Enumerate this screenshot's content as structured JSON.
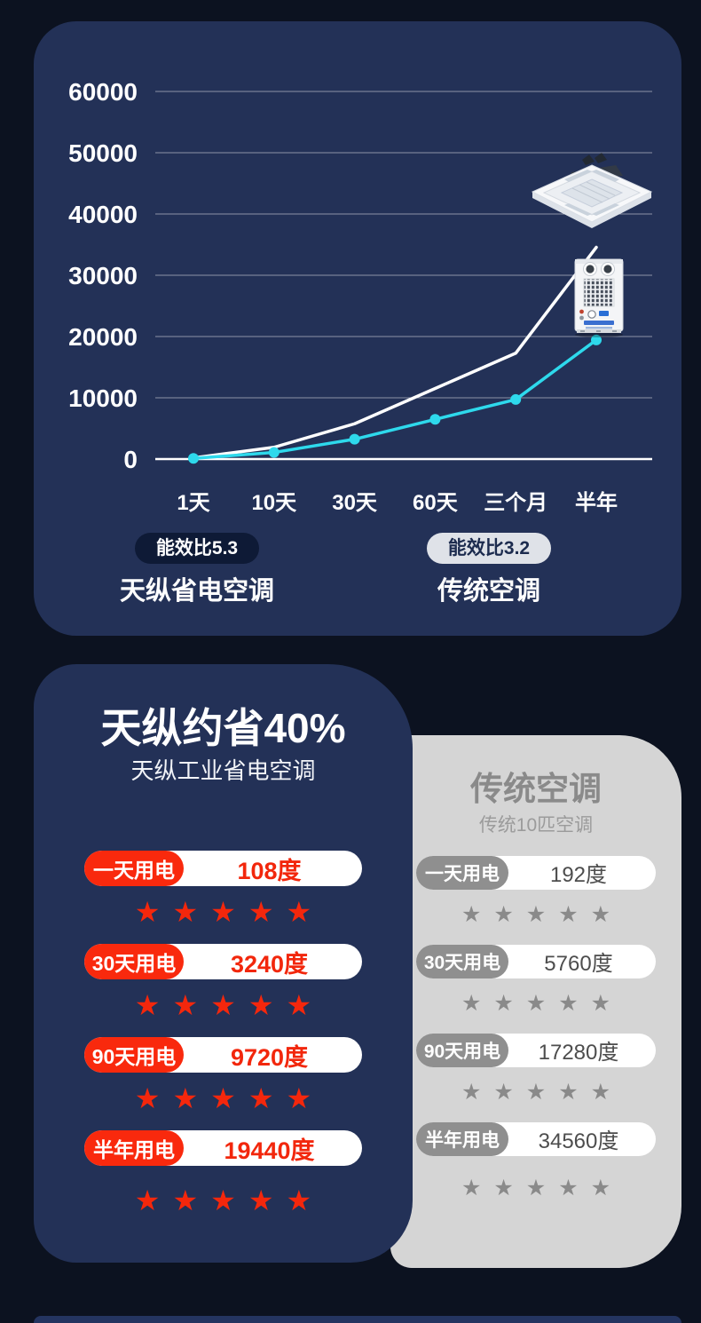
{
  "chart_data": {
    "type": "line",
    "title": "",
    "xlabel": "",
    "ylabel": "",
    "categories": [
      "1天",
      "10天",
      "30天",
      "60天",
      "三个月",
      "半年"
    ],
    "series": [
      {
        "name": "天纵省电空调",
        "color": "#2ed9ec",
        "markers": true,
        "values": [
          108,
          1080,
          3240,
          6480,
          9720,
          19440
        ]
      },
      {
        "name": "传统空调",
        "color": "#ffffff",
        "markers": false,
        "values": [
          192,
          1920,
          5760,
          11520,
          17280,
          34560
        ]
      }
    ],
    "y_ticks": [
      0,
      10000,
      20000,
      30000,
      40000,
      50000,
      60000
    ],
    "ylim": [
      0,
      60000
    ],
    "grid": true,
    "legend_position": "bottom"
  },
  "legend": [
    {
      "badge": "能效比5.3",
      "label": "天纵省电空调"
    },
    {
      "badge": "能效比3.2",
      "label": "传统空调"
    }
  ],
  "cards": [
    {
      "title": "天纵约省40%",
      "subtitle": "天纵工业省电空调",
      "rows": [
        {
          "label": "一天用电",
          "value": "108度",
          "stars": 5
        },
        {
          "label": "30天用电",
          "value": "3240度",
          "stars": 5
        },
        {
          "label": "90天用电",
          "value": "9720度",
          "stars": 5
        },
        {
          "label": "半年用电",
          "value": "19440度",
          "stars": 5
        }
      ]
    },
    {
      "title": "传统空调",
      "subtitle": "传统10匹空调",
      "rows": [
        {
          "label": "一天用电",
          "value": "192度",
          "stars": 5
        },
        {
          "label": "30天用电",
          "value": "5760度",
          "stars": 5
        },
        {
          "label": "90天用电",
          "value": "17280度",
          "stars": 5
        },
        {
          "label": "半年用电",
          "value": "34560度",
          "stars": 5
        }
      ]
    }
  ],
  "colors": {
    "page_background": "#0c1220",
    "panel_navy": "#233157",
    "card_gray": "#d5d5d5",
    "accent_red": "#f9290d",
    "accent_cyan": "#2ed9ec",
    "badge_dark": "#0e1a36",
    "badge_light": "#dfe2e8"
  },
  "star_glyph": "★"
}
